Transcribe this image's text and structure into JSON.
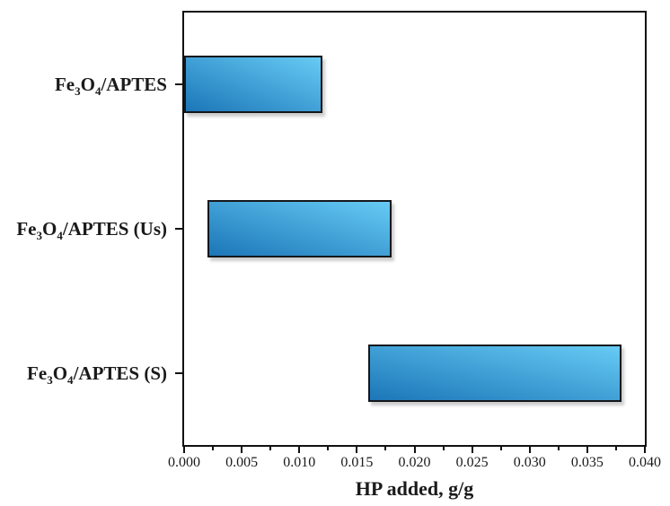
{
  "chart_data": {
    "type": "bar",
    "orientation": "horizontal",
    "title": "",
    "xlabel": "HP added, g/g",
    "ylabel": "",
    "xlim": [
      0,
      0.04
    ],
    "x_major_tick_step": 0.005,
    "x_minor_tick_step": 0.0025,
    "x_tick_labels": [
      "0.000",
      "0.005",
      "0.010",
      "0.015",
      "0.020",
      "0.025",
      "0.030",
      "0.035",
      "0.040"
    ],
    "grid": false,
    "legend": false,
    "categories": [
      "Fe3O4/APTES",
      "Fe3O4/APTES (Us)",
      "Fe3O4/APTES (S)"
    ],
    "bars": [
      {
        "label": "Fe3O4/APTES",
        "label_segments": [
          {
            "t": "Fe"
          },
          {
            "t": "3",
            "sub": true
          },
          {
            "t": "O"
          },
          {
            "t": "4",
            "sub": true
          },
          {
            "t": "/APTES"
          }
        ],
        "start": 0.0,
        "end": 0.012
      },
      {
        "label": "Fe3O4/APTES (Us)",
        "label_segments": [
          {
            "t": "Fe"
          },
          {
            "t": "3",
            "sub": true
          },
          {
            "t": "O"
          },
          {
            "t": "4",
            "sub": true
          },
          {
            "t": "/APTES (Us)"
          }
        ],
        "start": 0.002,
        "end": 0.018
      },
      {
        "label": "Fe3O4/APTES (S)",
        "label_segments": [
          {
            "t": "Fe"
          },
          {
            "t": "3",
            "sub": true
          },
          {
            "t": "O"
          },
          {
            "t": "4",
            "sub": true
          },
          {
            "t": "/APTES (S)"
          }
        ],
        "start": 0.016,
        "end": 0.038
      }
    ],
    "colors": {
      "bar_fill_gradient_start": "#1C76B8",
      "bar_fill_gradient_end": "#66CBF4",
      "bar_border": "#14171c",
      "axis": "#111111",
      "text": "#1a1a1a",
      "background": "#ffffff"
    }
  }
}
